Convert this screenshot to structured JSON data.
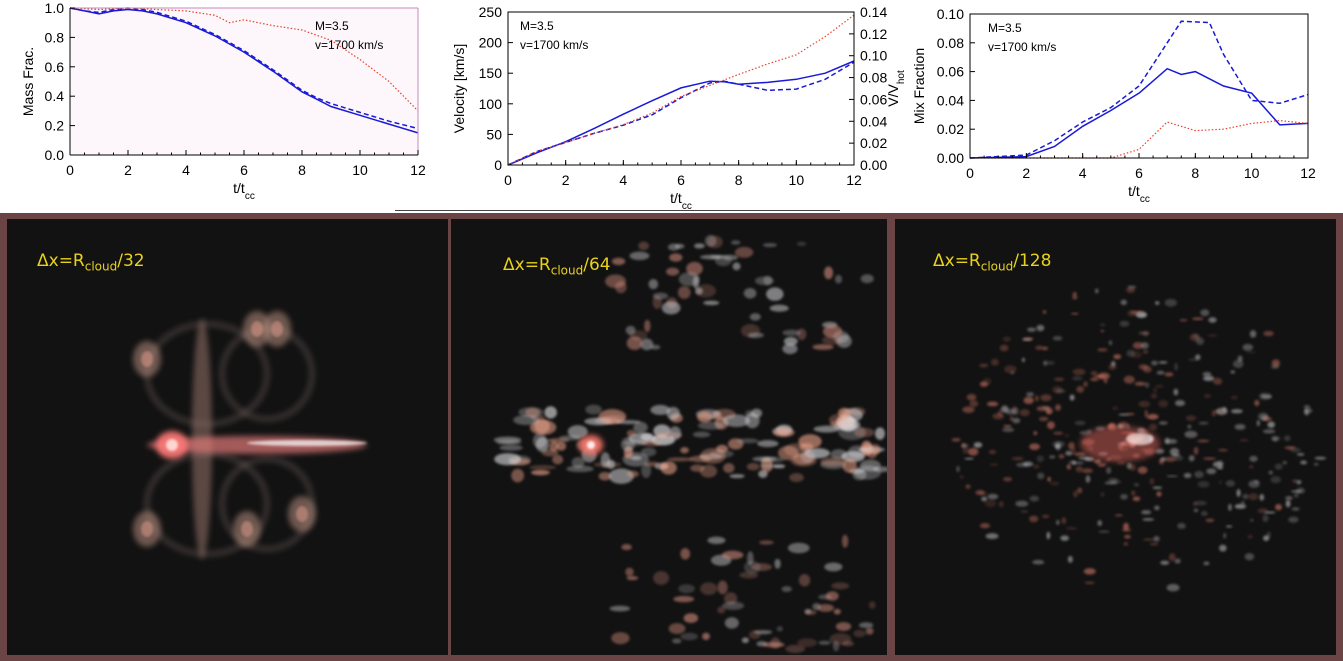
{
  "chart_data": [
    {
      "type": "line",
      "xlabel": "t/t",
      "xlabel_sub": "cc",
      "ylabel": "Mass Frac.",
      "xlim": [
        0,
        12
      ],
      "ylim": [
        0,
        1.0
      ],
      "xticks": [
        "0",
        "2",
        "4",
        "6",
        "8",
        "10",
        "12"
      ],
      "yticks": [
        "0.0",
        "0.2",
        "0.4",
        "0.6",
        "0.8",
        "1.0"
      ],
      "annotations": [
        "M=3.5",
        "v=1700 km/s"
      ],
      "series": [
        {
          "color": "#1a1ad6",
          "dash": "solid",
          "x": [
            0,
            0.5,
            1,
            1.5,
            2,
            2.5,
            3,
            4,
            5,
            6,
            7,
            8,
            8.5,
            9,
            10,
            11,
            12
          ],
          "y": [
            1.0,
            0.98,
            0.96,
            0.98,
            0.99,
            0.98,
            0.96,
            0.9,
            0.81,
            0.7,
            0.57,
            0.43,
            0.38,
            0.33,
            0.27,
            0.21,
            0.15
          ]
        },
        {
          "color": "#1a1ad6",
          "dash": "dash",
          "x": [
            0,
            0.5,
            1,
            1.5,
            2,
            2.5,
            3,
            4,
            5,
            6,
            7,
            8,
            8.5,
            9,
            10,
            11,
            12
          ],
          "y": [
            1.0,
            0.98,
            0.97,
            0.99,
            1.0,
            0.99,
            0.97,
            0.91,
            0.82,
            0.71,
            0.58,
            0.44,
            0.39,
            0.35,
            0.29,
            0.23,
            0.18
          ]
        },
        {
          "color": "#e8402a",
          "dash": "dot",
          "x": [
            0,
            1,
            2,
            3,
            4,
            5,
            5.5,
            6,
            7,
            8,
            9,
            10,
            11,
            12
          ],
          "y": [
            1.0,
            0.99,
            1.0,
            0.99,
            0.98,
            0.95,
            0.9,
            0.92,
            0.88,
            0.85,
            0.78,
            0.65,
            0.5,
            0.3
          ]
        }
      ]
    },
    {
      "type": "line",
      "xlabel": "t/t",
      "xlabel_sub": "cc",
      "ylabel": "Velocity [km/s]",
      "ylabel_right": "V/V",
      "ylabel_right_sub": "hot",
      "xlim": [
        0,
        12
      ],
      "ylim": [
        0,
        250
      ],
      "ylim_right": [
        0,
        0.14
      ],
      "xticks": [
        "0",
        "2",
        "4",
        "6",
        "8",
        "10",
        "12"
      ],
      "yticks": [
        "0",
        "50",
        "100",
        "150",
        "200",
        "250"
      ],
      "yticks_right": [
        "0.00",
        "0.02",
        "0.04",
        "0.06",
        "0.08",
        "0.10",
        "0.12",
        "0.14"
      ],
      "annotations": [
        "M=3.5",
        "v=1700 km/s"
      ],
      "series": [
        {
          "color": "#1a1ad6",
          "dash": "solid",
          "x": [
            0,
            1,
            2,
            3,
            4,
            5,
            6,
            7,
            7.5,
            8,
            9,
            10,
            11,
            12
          ],
          "y": [
            0,
            20,
            38,
            60,
            83,
            105,
            126,
            137,
            136,
            132,
            135,
            140,
            150,
            170
          ]
        },
        {
          "color": "#1a1ad6",
          "dash": "dash",
          "x": [
            0,
            1,
            2,
            3,
            4,
            5,
            6,
            7,
            7.5,
            8,
            9,
            10,
            11,
            12
          ],
          "y": [
            0,
            22,
            37,
            52,
            65,
            82,
            110,
            134,
            137,
            132,
            122,
            124,
            140,
            168
          ]
        },
        {
          "color": "#e8402a",
          "dash": "dot",
          "x": [
            0,
            1,
            2,
            3,
            4,
            5,
            6,
            7,
            8,
            9,
            10,
            11,
            12
          ],
          "y": [
            0,
            22,
            37,
            52,
            66,
            85,
            112,
            130,
            148,
            165,
            180,
            210,
            245
          ]
        }
      ]
    },
    {
      "type": "line",
      "xlabel": "t/t",
      "xlabel_sub": "cc",
      "ylabel": "Mix Fraction",
      "xlim": [
        0,
        12
      ],
      "ylim": [
        0,
        0.1
      ],
      "xticks": [
        "0",
        "2",
        "4",
        "6",
        "8",
        "10",
        "12"
      ],
      "yticks": [
        "0.00",
        "0.02",
        "0.04",
        "0.06",
        "0.08",
        "0.10"
      ],
      "annotations": [
        "M=3.5",
        "v=1700 km/s"
      ],
      "series": [
        {
          "color": "#1a1ad6",
          "dash": "solid",
          "x": [
            0,
            2,
            3,
            4,
            5,
            6,
            7,
            7.5,
            8,
            9,
            10,
            11,
            12
          ],
          "y": [
            0,
            0.001,
            0.008,
            0.022,
            0.033,
            0.045,
            0.062,
            0.058,
            0.06,
            0.05,
            0.045,
            0.023,
            0.024
          ]
        },
        {
          "color": "#1a1ad6",
          "dash": "dash",
          "x": [
            0,
            2,
            3,
            4,
            5,
            6,
            7,
            7.5,
            8.5,
            9,
            10,
            11,
            12
          ],
          "y": [
            0,
            0.002,
            0.012,
            0.025,
            0.035,
            0.05,
            0.08,
            0.095,
            0.094,
            0.072,
            0.04,
            0.038,
            0.044
          ]
        },
        {
          "color": "#e8402a",
          "dash": "dot",
          "x": [
            0,
            5,
            6,
            7,
            8,
            9,
            10,
            11,
            12
          ],
          "y": [
            0,
            0.0,
            0.006,
            0.025,
            0.019,
            0.02,
            0.024,
            0.026,
            0.024
          ]
        }
      ]
    }
  ],
  "panels": [
    {
      "label_prefix": "Δx=R",
      "label_sub": "cloud",
      "label_suffix": "/32"
    },
    {
      "label_prefix": "Δx=R",
      "label_sub": "cloud",
      "label_suffix": "/64"
    },
    {
      "label_prefix": "Δx=R",
      "label_sub": "cloud",
      "label_suffix": "/128"
    }
  ]
}
